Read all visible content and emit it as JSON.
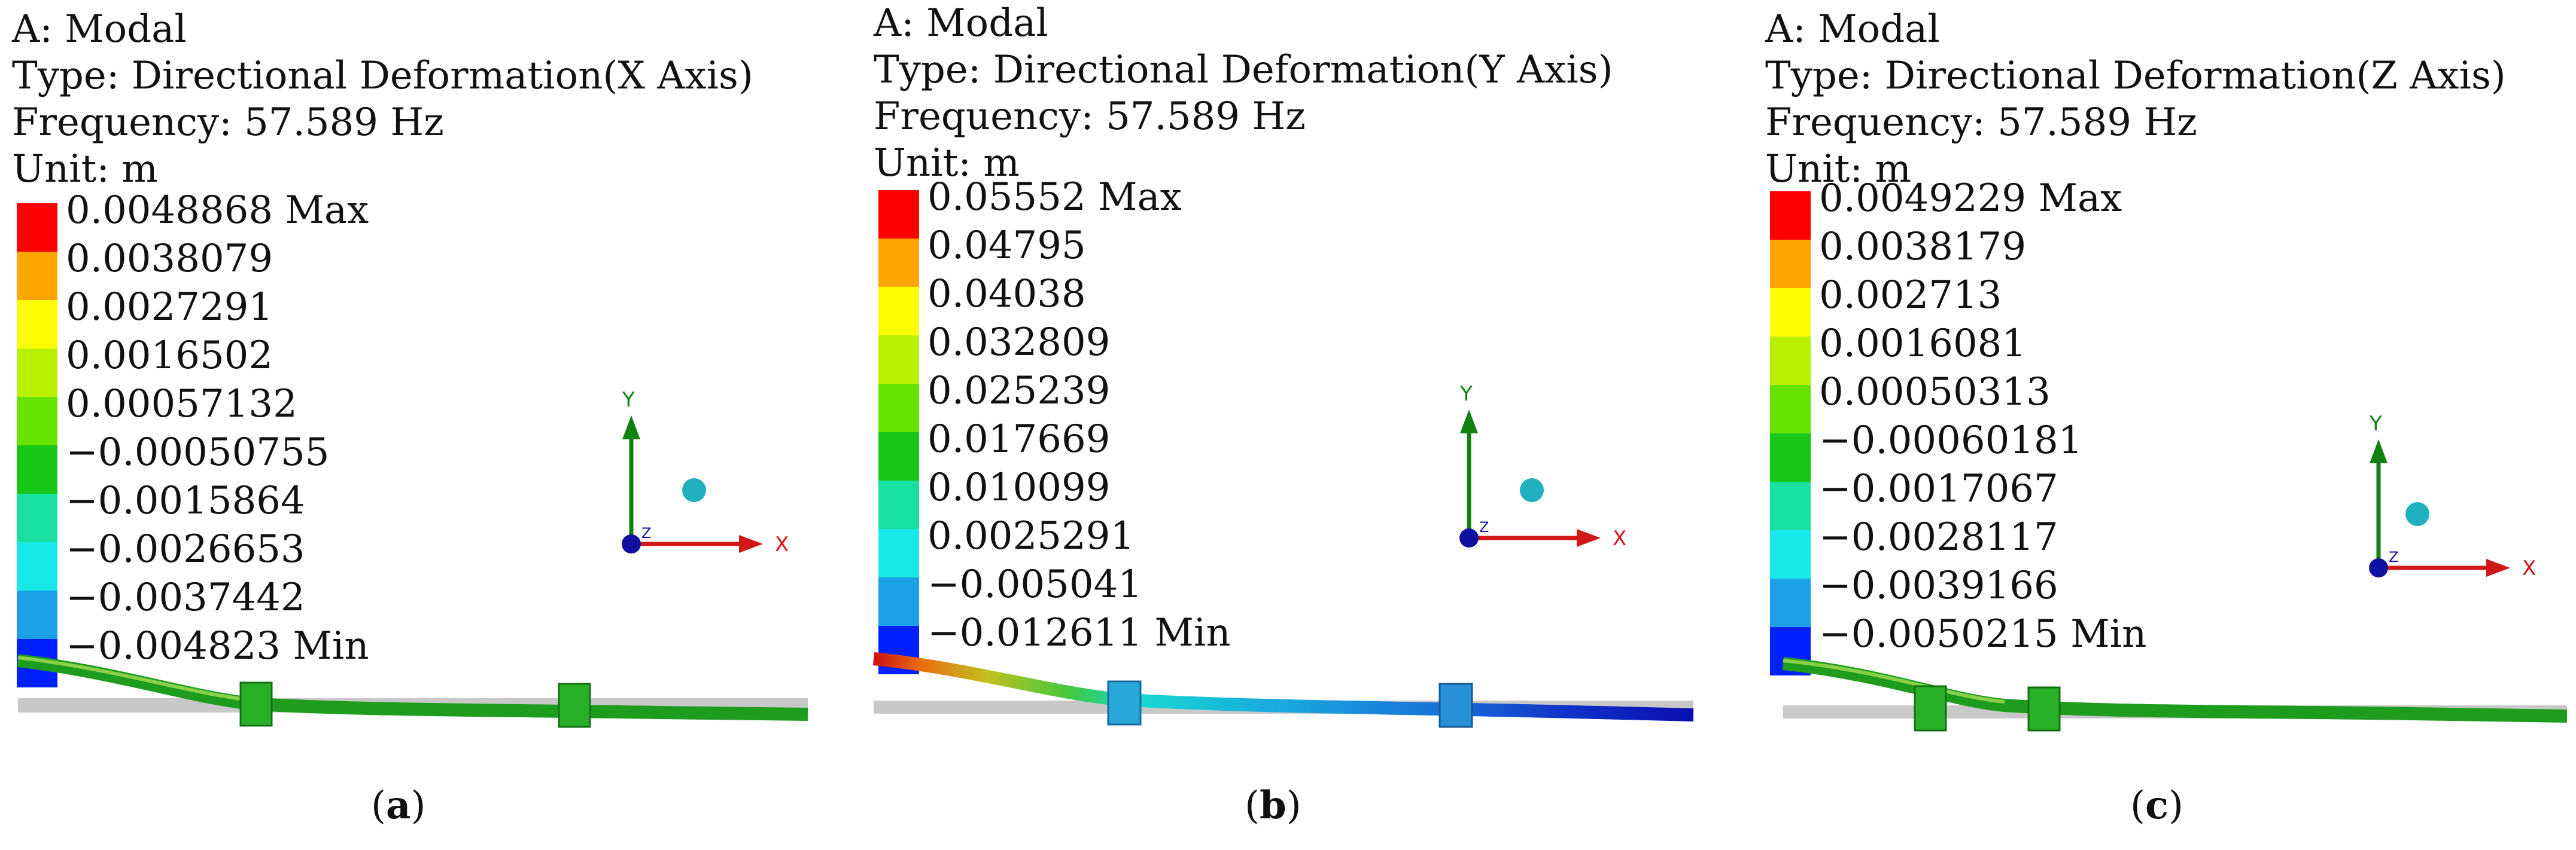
{
  "panels": [
    {
      "header": [
        "A: Modal",
        "Type: Directional Deformation(X Axis)",
        "Frequency: 57.589 Hz",
        "Unit: m"
      ],
      "legend": [
        "0.0048868 Max",
        "0.0038079",
        "0.0027291",
        "0.0016502",
        "0.00057132",
        "−0.00050755",
        "−0.0015864",
        "−0.0026653",
        "−0.0037442",
        "−0.004823 Min"
      ],
      "caption_open": "(",
      "caption_letter": "a",
      "caption_close": ")"
    },
    {
      "header": [
        "A: Modal",
        "Type: Directional Deformation(Y Axis)",
        "Frequency: 57.589 Hz",
        "Unit: m"
      ],
      "legend": [
        "0.05552 Max",
        "0.04795",
        "0.04038",
        "0.032809",
        "0.025239",
        "0.017669",
        "0.010099",
        "0.0025291",
        "−0.005041",
        "−0.012611 Min"
      ],
      "caption_open": "(",
      "caption_letter": "b",
      "caption_close": ")"
    },
    {
      "header": [
        "A: Modal",
        "Type: Directional Deformation(Z Axis)",
        "Frequency: 57.589 Hz",
        "Unit: m"
      ],
      "legend": [
        "0.0049229 Max",
        "0.0038179",
        "0.002713",
        "0.0016081",
        "0.00050313",
        "−0.00060181",
        "−0.0017067",
        "−0.0028117",
        "−0.0039166",
        "−0.0050215 Min"
      ],
      "caption_open": "(",
      "caption_letter": "c",
      "caption_close": ")"
    }
  ],
  "legend_colors": [
    "#ff0000",
    "#ffa500",
    "#ffff00",
    "#b8f000",
    "#66e400",
    "#18c818",
    "#18e0a0",
    "#18e8e8",
    "#1ca0e8",
    "#0020ff"
  ],
  "triad_labels": {
    "x": "X",
    "y": "Y",
    "z": "Z"
  },
  "colors": {
    "x_axis": "#d01818",
    "y_axis": "#108010",
    "z_axis": "#1010a0",
    "sphere": "#20b0c0",
    "support": "#c8c8c8"
  }
}
